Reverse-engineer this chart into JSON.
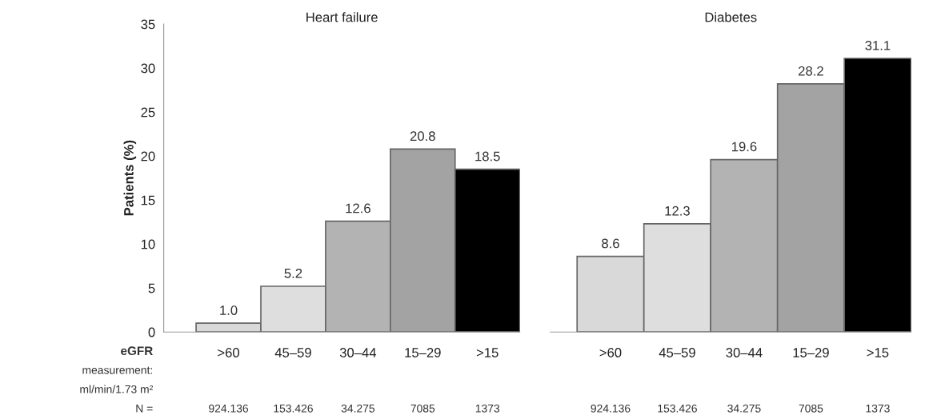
{
  "chart_data": [
    {
      "type": "bar",
      "title": "Heart failure",
      "ylabel": "Patients (%)",
      "categories": [
        ">60",
        "45–59",
        "30–44",
        "15–29",
        ">15"
      ],
      "values": [
        1.0,
        5.2,
        12.6,
        20.8,
        18.5
      ],
      "value_labels": [
        "1.0",
        "5.2",
        "12.6",
        "20.8",
        "18.5"
      ],
      "colors": [
        "#d9d9d9",
        "#dedede",
        "#b3b3b3",
        "#a3a3a3",
        "#000000"
      ],
      "ylim": [
        0,
        35
      ],
      "yticks": [
        0,
        5,
        10,
        15,
        20,
        25,
        30,
        35
      ],
      "grid": false,
      "legend": false,
      "annotations": [
        "eGFR",
        "measurement:",
        "ml/min/1.73 m²",
        "N =",
        "924.136",
        "153.426",
        "34.275",
        "7085",
        "1373"
      ]
    },
    {
      "type": "bar",
      "title": "Diabetes",
      "categories": [
        ">60",
        "45–59",
        "30–44",
        "15–29",
        ">15"
      ],
      "values": [
        8.6,
        12.3,
        19.6,
        28.2,
        31.1
      ],
      "value_labels": [
        "8.6",
        "12.3",
        "19.6",
        "28.2",
        "31.1"
      ],
      "colors": [
        "#d9d9d9",
        "#dedede",
        "#b3b3b3",
        "#a3a3a3",
        "#000000"
      ],
      "ylim": [
        0,
        35
      ],
      "tick_labels": "x",
      "grid": false,
      "legend": false,
      "annotations": [
        "924.136",
        "153.426",
        "34.275",
        "7085",
        "1373"
      ]
    }
  ]
}
